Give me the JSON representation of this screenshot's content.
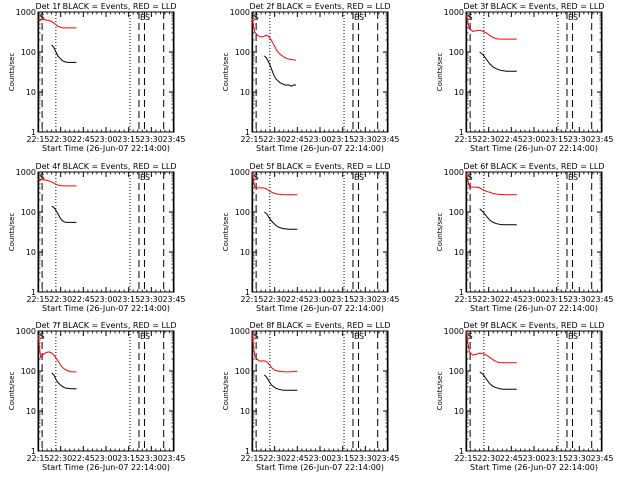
{
  "chart_data": [
    {
      "type": "line",
      "title": "Det 1f BLACK = Events, RED = LLD",
      "xlabel": "Start Time (26-Jun-07 22:14:00)",
      "ylabel": "Counts/sec",
      "y_scale": "log",
      "ylim": [
        1,
        1000
      ],
      "xlim_minutes": [
        0,
        99
      ],
      "x_tick_labels": [
        "22:15",
        "22:30",
        "22:45",
        "23:00",
        "23:15",
        "23:30",
        "23:45"
      ],
      "y_tick_labels": [
        "1",
        "10",
        "100",
        "1000"
      ],
      "marker_labels": [
        "S",
        "ES"
      ],
      "series": [
        {
          "color": "#ff0000",
          "start": 0,
          "end": 28,
          "values": [
            620,
            640,
            650,
            630,
            610,
            580,
            520,
            450,
            420,
            400,
            400,
            400,
            400,
            400,
            400
          ]
        },
        {
          "color": "#000000",
          "start": 10,
          "end": 28,
          "values": [
            150,
            130,
            100,
            80,
            70,
            62,
            58,
            56,
            55,
            55,
            55,
            55,
            55
          ]
        }
      ]
    },
    {
      "type": "line",
      "title": "Det 2f BLACK = Events, RED = LLD",
      "xlabel": "Start Time (26-Jun-07 22:14:00)",
      "ylabel": "Counts/sec",
      "y_scale": "log",
      "ylim": [
        1,
        1000
      ],
      "xlim_minutes": [
        0,
        99
      ],
      "x_tick_labels": [
        "22:15",
        "22:30",
        "22:45",
        "23:00",
        "23:15",
        "23:30",
        "23:45"
      ],
      "y_tick_labels": [
        "1",
        "10",
        "100",
        "1000"
      ],
      "marker_labels": [
        "S",
        "ES"
      ],
      "series": [
        {
          "color": "#ff0000",
          "start": 0,
          "end": 32,
          "values": [
            700,
            320,
            260,
            240,
            240,
            260,
            250,
            200,
            150,
            110,
            90,
            80,
            72,
            68,
            65,
            64,
            62
          ]
        },
        {
          "color": "#000000",
          "start": 9,
          "end": 32,
          "values": [
            80,
            70,
            55,
            40,
            28,
            22,
            19,
            17,
            16,
            15,
            15,
            15,
            14,
            15,
            15
          ]
        }
      ]
    },
    {
      "type": "line",
      "title": "Det 3f BLACK = Events, RED = LLD",
      "xlabel": "Start Time (26-Jun-07 22:14:00)",
      "ylabel": "Counts/sec",
      "y_scale": "log",
      "ylim": [
        1,
        1000
      ],
      "xlim_minutes": [
        0,
        99
      ],
      "x_tick_labels": [
        "22:15",
        "22:30",
        "22:45",
        "23:00",
        "23:15",
        "23:30",
        "23:45"
      ],
      "y_tick_labels": [
        "1",
        "10",
        "100",
        "1000"
      ],
      "marker_labels": [
        "S",
        "ES"
      ],
      "series": [
        {
          "color": "#ff0000",
          "start": 0,
          "end": 37,
          "values": [
            900,
            380,
            330,
            340,
            350,
            330,
            300,
            260,
            230,
            215,
            210,
            210,
            210,
            210,
            210,
            210
          ]
        },
        {
          "color": "#000000",
          "start": 10,
          "end": 37,
          "values": [
            100,
            85,
            65,
            50,
            42,
            38,
            35,
            34,
            33,
            33,
            33,
            33
          ]
        }
      ]
    },
    {
      "type": "line",
      "title": "Det 4f BLACK = Events, RED = LLD",
      "xlabel": "Start Time (26-Jun-07 22:14:00)",
      "ylabel": "Counts/sec",
      "y_scale": "log",
      "ylim": [
        1,
        1000
      ],
      "xlim_minutes": [
        0,
        99
      ],
      "x_tick_labels": [
        "22:15",
        "22:30",
        "22:45",
        "23:00",
        "23:15",
        "23:30",
        "23:45"
      ],
      "y_tick_labels": [
        "1",
        "10",
        "100",
        "1000"
      ],
      "marker_labels": [
        "S",
        "ES"
      ],
      "series": [
        {
          "color": "#ff0000",
          "start": 0,
          "end": 28,
          "values": [
            640,
            640,
            640,
            620,
            600,
            560,
            520,
            480,
            460,
            450,
            450,
            450,
            450,
            450,
            450
          ]
        },
        {
          "color": "#000000",
          "start": 10,
          "end": 28,
          "values": [
            140,
            130,
            110,
            90,
            72,
            62,
            57,
            55,
            55,
            55,
            55,
            55,
            55
          ]
        }
      ]
    },
    {
      "type": "line",
      "title": "Det 5f BLACK = Events, RED = LLD",
      "xlabel": "Start Time (26-Jun-07 22:14:00)",
      "ylabel": "Counts/sec",
      "y_scale": "log",
      "ylim": [
        1,
        1000
      ],
      "xlim_minutes": [
        0,
        99
      ],
      "x_tick_labels": [
        "22:15",
        "22:30",
        "22:45",
        "23:00",
        "23:15",
        "23:30",
        "23:45"
      ],
      "y_tick_labels": [
        "1",
        "10",
        "100",
        "1000"
      ],
      "marker_labels": [
        "S",
        "ES"
      ],
      "series": [
        {
          "color": "#ff0000",
          "start": 0,
          "end": 33,
          "values": [
            1000,
            420,
            400,
            400,
            400,
            380,
            340,
            310,
            290,
            280,
            275,
            272,
            270,
            270,
            270,
            270,
            270
          ]
        },
        {
          "color": "#000000",
          "start": 9,
          "end": 33,
          "values": [
            100,
            90,
            72,
            60,
            52,
            46,
            42,
            40,
            38,
            38,
            37,
            37,
            37,
            37,
            37
          ]
        }
      ]
    },
    {
      "type": "line",
      "title": "Det 6f BLACK = Events, RED = LLD",
      "xlabel": "Start Time (26-Jun-07 22:14:00)",
      "ylabel": "Counts/sec",
      "y_scale": "log",
      "ylim": [
        1,
        1000
      ],
      "xlim_minutes": [
        0,
        99
      ],
      "x_tick_labels": [
        "22:15",
        "22:30",
        "22:45",
        "23:00",
        "23:15",
        "23:30",
        "23:45"
      ],
      "y_tick_labels": [
        "1",
        "10",
        "100",
        "1000"
      ],
      "marker_labels": [
        "S",
        "ES"
      ],
      "series": [
        {
          "color": "#ff0000",
          "start": 0,
          "end": 37,
          "values": [
            950,
            430,
            420,
            420,
            400,
            360,
            330,
            310,
            290,
            280,
            275,
            272,
            270,
            270,
            270,
            270
          ]
        },
        {
          "color": "#000000",
          "start": 10,
          "end": 37,
          "values": [
            120,
            100,
            78,
            62,
            55,
            51,
            49,
            48,
            48,
            48,
            48,
            48
          ]
        }
      ]
    },
    {
      "type": "line",
      "title": "Det 7f BLACK = Events, RED = LLD",
      "xlabel": "Start Time (26-Jun-07 22:14:00)",
      "ylabel": "Counts/sec",
      "y_scale": "log",
      "ylim": [
        1,
        1000
      ],
      "xlim_minutes": [
        0,
        99
      ],
      "x_tick_labels": [
        "22:15",
        "22:30",
        "22:45",
        "23:00",
        "23:15",
        "23:30",
        "23:45"
      ],
      "y_tick_labels": [
        "1",
        "10",
        "100",
        "1000"
      ],
      "marker_labels": [
        "S",
        "ES"
      ],
      "series": [
        {
          "color": "#ff0000",
          "start": 0,
          "end": 28,
          "values": [
            800,
            220,
            260,
            290,
            300,
            280,
            240,
            190,
            150,
            120,
            108,
            100,
            96,
            95,
            95
          ]
        },
        {
          "color": "#000000",
          "start": 10,
          "end": 28,
          "values": [
            90,
            80,
            62,
            52,
            46,
            42,
            39,
            37,
            37,
            36,
            36,
            36,
            36
          ]
        }
      ]
    },
    {
      "type": "line",
      "title": "Det 8f BLACK = Events, RED = LLD",
      "xlabel": "Start Time (26-Jun-07 22:14:00)",
      "ylabel": "Counts/sec",
      "y_scale": "log",
      "ylim": [
        1,
        1000
      ],
      "xlim_minutes": [
        0,
        99
      ],
      "x_tick_labels": [
        "22:15",
        "22:30",
        "22:45",
        "23:00",
        "23:15",
        "23:30",
        "23:45"
      ],
      "y_tick_labels": [
        "1",
        "10",
        "100",
        "1000"
      ],
      "marker_labels": [
        "S",
        "ES"
      ],
      "series": [
        {
          "color": "#ff0000",
          "start": 0,
          "end": 33,
          "values": [
            900,
            230,
            190,
            175,
            180,
            175,
            150,
            120,
            105,
            100,
            98,
            96,
            95,
            95,
            96,
            98,
            98
          ]
        },
        {
          "color": "#000000",
          "start": 9,
          "end": 33,
          "values": [
            80,
            70,
            55,
            45,
            40,
            37,
            35,
            34,
            33,
            33,
            33,
            33,
            33,
            33,
            33
          ]
        }
      ]
    },
    {
      "type": "line",
      "title": "Det 9f BLACK = Events, RED = LLD",
      "xlabel": "Start Time (26-Jun-07 22:14:00)",
      "ylabel": "Counts/sec",
      "y_scale": "log",
      "ylim": [
        1,
        1000
      ],
      "xlim_minutes": [
        0,
        99
      ],
      "x_tick_labels": [
        "22:15",
        "22:30",
        "22:45",
        "23:00",
        "23:15",
        "23:30",
        "23:45"
      ],
      "y_tick_labels": [
        "1",
        "10",
        "100",
        "1000"
      ],
      "marker_labels": [
        "S",
        "ES"
      ],
      "series": [
        {
          "color": "#ff0000",
          "start": 0,
          "end": 37,
          "values": [
            1000,
            300,
            250,
            260,
            280,
            270,
            250,
            220,
            190,
            170,
            162,
            160,
            160,
            160,
            160,
            160
          ]
        },
        {
          "color": "#000000",
          "start": 10,
          "end": 37,
          "values": [
            95,
            82,
            62,
            48,
            41,
            38,
            36,
            35,
            35,
            35,
            35,
            35
          ]
        }
      ]
    }
  ],
  "markers": {
    "solid": [
      0.5,
      98.5
    ],
    "dashed": [
      3,
      73.5,
      77.5,
      91.5
    ],
    "dotted": [
      13,
      67
    ]
  }
}
